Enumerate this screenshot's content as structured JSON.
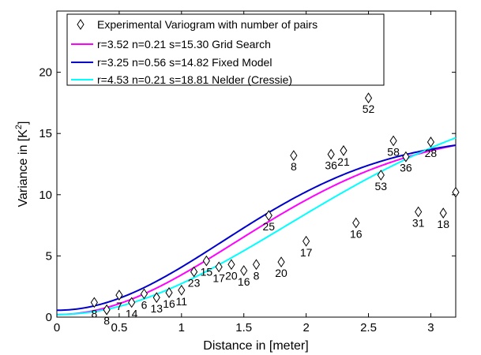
{
  "chart_data": {
    "type": "scatter",
    "xlabel": "Distance in [meter]",
    "ylabel_main": "Variance in [K",
    "ylabel_sup": "2",
    "ylabel_close": "]",
    "xlim": [
      0,
      3.2
    ],
    "ylim": [
      0,
      25
    ],
    "xticks": [
      0,
      0.5,
      1,
      1.5,
      2,
      2.5,
      3
    ],
    "xtick_labels": [
      "0",
      "0.5",
      "1",
      "1.5",
      "2",
      "2.5",
      "3"
    ],
    "yticks": [
      0,
      5,
      10,
      15,
      20
    ],
    "ytick_labels": [
      "0",
      "5",
      "10",
      "15",
      "20"
    ],
    "grid": false,
    "legend_position": "top-left",
    "points": {
      "name": "Experimental Variogram with number of pairs",
      "marker": "diamond",
      "x": [
        0.3,
        0.4,
        0.5,
        0.6,
        0.7,
        0.8,
        0.9,
        1.0,
        1.1,
        1.2,
        1.3,
        1.4,
        1.5,
        1.6,
        1.7,
        1.8,
        1.9,
        2.0,
        2.2,
        2.3,
        2.4,
        2.5,
        2.6,
        2.7,
        2.8,
        2.9,
        3.0,
        3.1,
        3.2
      ],
      "y": [
        1.2,
        0.6,
        1.8,
        1.2,
        1.9,
        1.6,
        2.0,
        2.2,
        3.7,
        4.6,
        4.1,
        4.3,
        3.8,
        4.3,
        8.3,
        4.5,
        13.2,
        6.2,
        13.3,
        13.6,
        7.7,
        17.9,
        11.6,
        14.4,
        13.1,
        8.6,
        14.3,
        8.5,
        10.2
      ],
      "labels": [
        "8",
        "8",
        "7",
        "14",
        "6",
        "13",
        "16",
        "11",
        "23",
        "15",
        "17",
        "20",
        "16",
        "8",
        "25",
        "20",
        "8",
        "17",
        "36",
        "21",
        "16",
        "52",
        "53",
        "58",
        "36",
        "31",
        "28",
        "18",
        ""
      ]
    },
    "series": [
      {
        "name": "r=3.52 n=0.21 s=15.30 Grid Search",
        "color": "#ff00ff",
        "range": 3.52,
        "nugget": 0.21,
        "sill": 15.3
      },
      {
        "name": "r=3.25 n=0.56 s=14.82 Fixed Model",
        "color": "#0000cc",
        "range": 3.25,
        "nugget": 0.56,
        "sill": 14.82
      },
      {
        "name": "r=4.53 n=0.21 s=18.81 Nelder (Cressie)",
        "color": "#00ffff",
        "range": 4.53,
        "nugget": 0.21,
        "sill": 18.81
      }
    ]
  }
}
